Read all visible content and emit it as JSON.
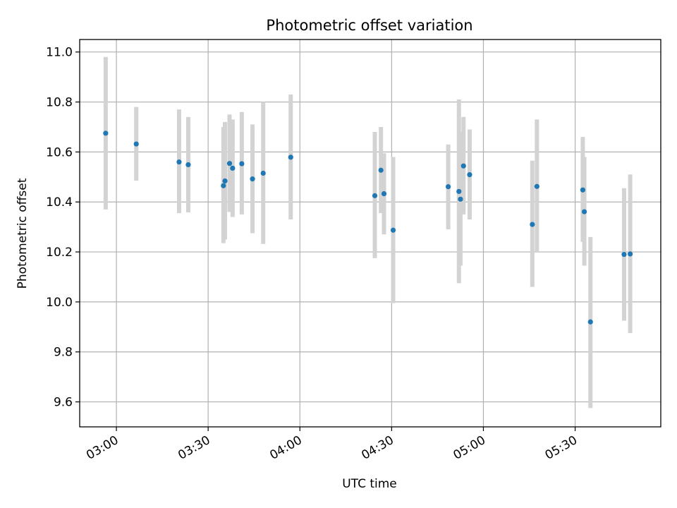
{
  "chart_data": {
    "type": "scatter",
    "title": "Photometric offset variation",
    "xlabel": "UTC time",
    "ylabel": "Photometric offset",
    "x_unit": "UTC time (HH:MM)",
    "xlim": [
      "02:48",
      "05:58"
    ],
    "ylim": [
      9.5,
      11.05
    ],
    "x_ticks": [
      "03:00",
      "03:30",
      "04:00",
      "04:30",
      "05:00",
      "05:30"
    ],
    "y_ticks": [
      "9.6",
      "9.8",
      "10.0",
      "10.2",
      "10.4",
      "10.6",
      "10.8",
      "11.0"
    ],
    "grid": true,
    "legend": "none",
    "colors": {
      "point": "#1f77b4",
      "errorbar": "#d3d3d3",
      "grid": "#b0b0b0"
    },
    "series": [
      {
        "points": [
          {
            "x": "02:56:30",
            "y": 10.675,
            "ylow": 10.37,
            "yhigh": 10.98
          },
          {
            "x": "03:06:30",
            "y": 10.632,
            "ylow": 10.485,
            "yhigh": 10.78
          },
          {
            "x": "03:20:30",
            "y": 10.56,
            "ylow": 10.355,
            "yhigh": 10.77
          },
          {
            "x": "03:23:30",
            "y": 10.549,
            "ylow": 10.358,
            "yhigh": 10.74
          },
          {
            "x": "03:35:00",
            "y": 10.465,
            "ylow": 10.235,
            "yhigh": 10.7
          },
          {
            "x": "03:35:30",
            "y": 10.484,
            "ylow": 10.25,
            "yhigh": 10.72
          },
          {
            "x": "03:37:00",
            "y": 10.554,
            "ylow": 10.36,
            "yhigh": 10.75
          },
          {
            "x": "03:38:00",
            "y": 10.535,
            "ylow": 10.34,
            "yhigh": 10.73
          },
          {
            "x": "03:41:00",
            "y": 10.553,
            "ylow": 10.35,
            "yhigh": 10.76
          },
          {
            "x": "03:44:30",
            "y": 10.492,
            "ylow": 10.275,
            "yhigh": 10.71
          },
          {
            "x": "03:48:00",
            "y": 10.515,
            "ylow": 10.232,
            "yhigh": 10.8
          },
          {
            "x": "03:57:00",
            "y": 10.579,
            "ylow": 10.33,
            "yhigh": 10.83
          },
          {
            "x": "04:24:30",
            "y": 10.425,
            "ylow": 10.175,
            "yhigh": 10.68
          },
          {
            "x": "04:26:30",
            "y": 10.527,
            "ylow": 10.355,
            "yhigh": 10.7
          },
          {
            "x": "04:27:30",
            "y": 10.433,
            "ylow": 10.27,
            "yhigh": 10.595
          },
          {
            "x": "04:30:30",
            "y": 10.287,
            "ylow": 9.995,
            "yhigh": 10.58
          },
          {
            "x": "04:48:30",
            "y": 10.461,
            "ylow": 10.29,
            "yhigh": 10.63
          },
          {
            "x": "04:52:00",
            "y": 10.442,
            "ylow": 10.075,
            "yhigh": 10.81
          },
          {
            "x": "04:52:30",
            "y": 10.411,
            "ylow": 10.145,
            "yhigh": 10.68
          },
          {
            "x": "04:53:30",
            "y": 10.544,
            "ylow": 10.35,
            "yhigh": 10.74
          },
          {
            "x": "04:55:30",
            "y": 10.509,
            "ylow": 10.33,
            "yhigh": 10.69
          },
          {
            "x": "05:16:00",
            "y": 10.31,
            "ylow": 10.06,
            "yhigh": 10.565
          },
          {
            "x": "05:17:30",
            "y": 10.462,
            "ylow": 10.2,
            "yhigh": 10.73
          },
          {
            "x": "05:32:30",
            "y": 10.448,
            "ylow": 10.24,
            "yhigh": 10.66
          },
          {
            "x": "05:33:00",
            "y": 10.361,
            "ylow": 10.145,
            "yhigh": 10.58
          },
          {
            "x": "05:35:00",
            "y": 9.92,
            "ylow": 9.575,
            "yhigh": 10.26
          },
          {
            "x": "05:46:00",
            "y": 10.19,
            "ylow": 9.925,
            "yhigh": 10.455
          },
          {
            "x": "05:48:00",
            "y": 10.192,
            "ylow": 9.875,
            "yhigh": 10.51
          }
        ]
      }
    ]
  }
}
